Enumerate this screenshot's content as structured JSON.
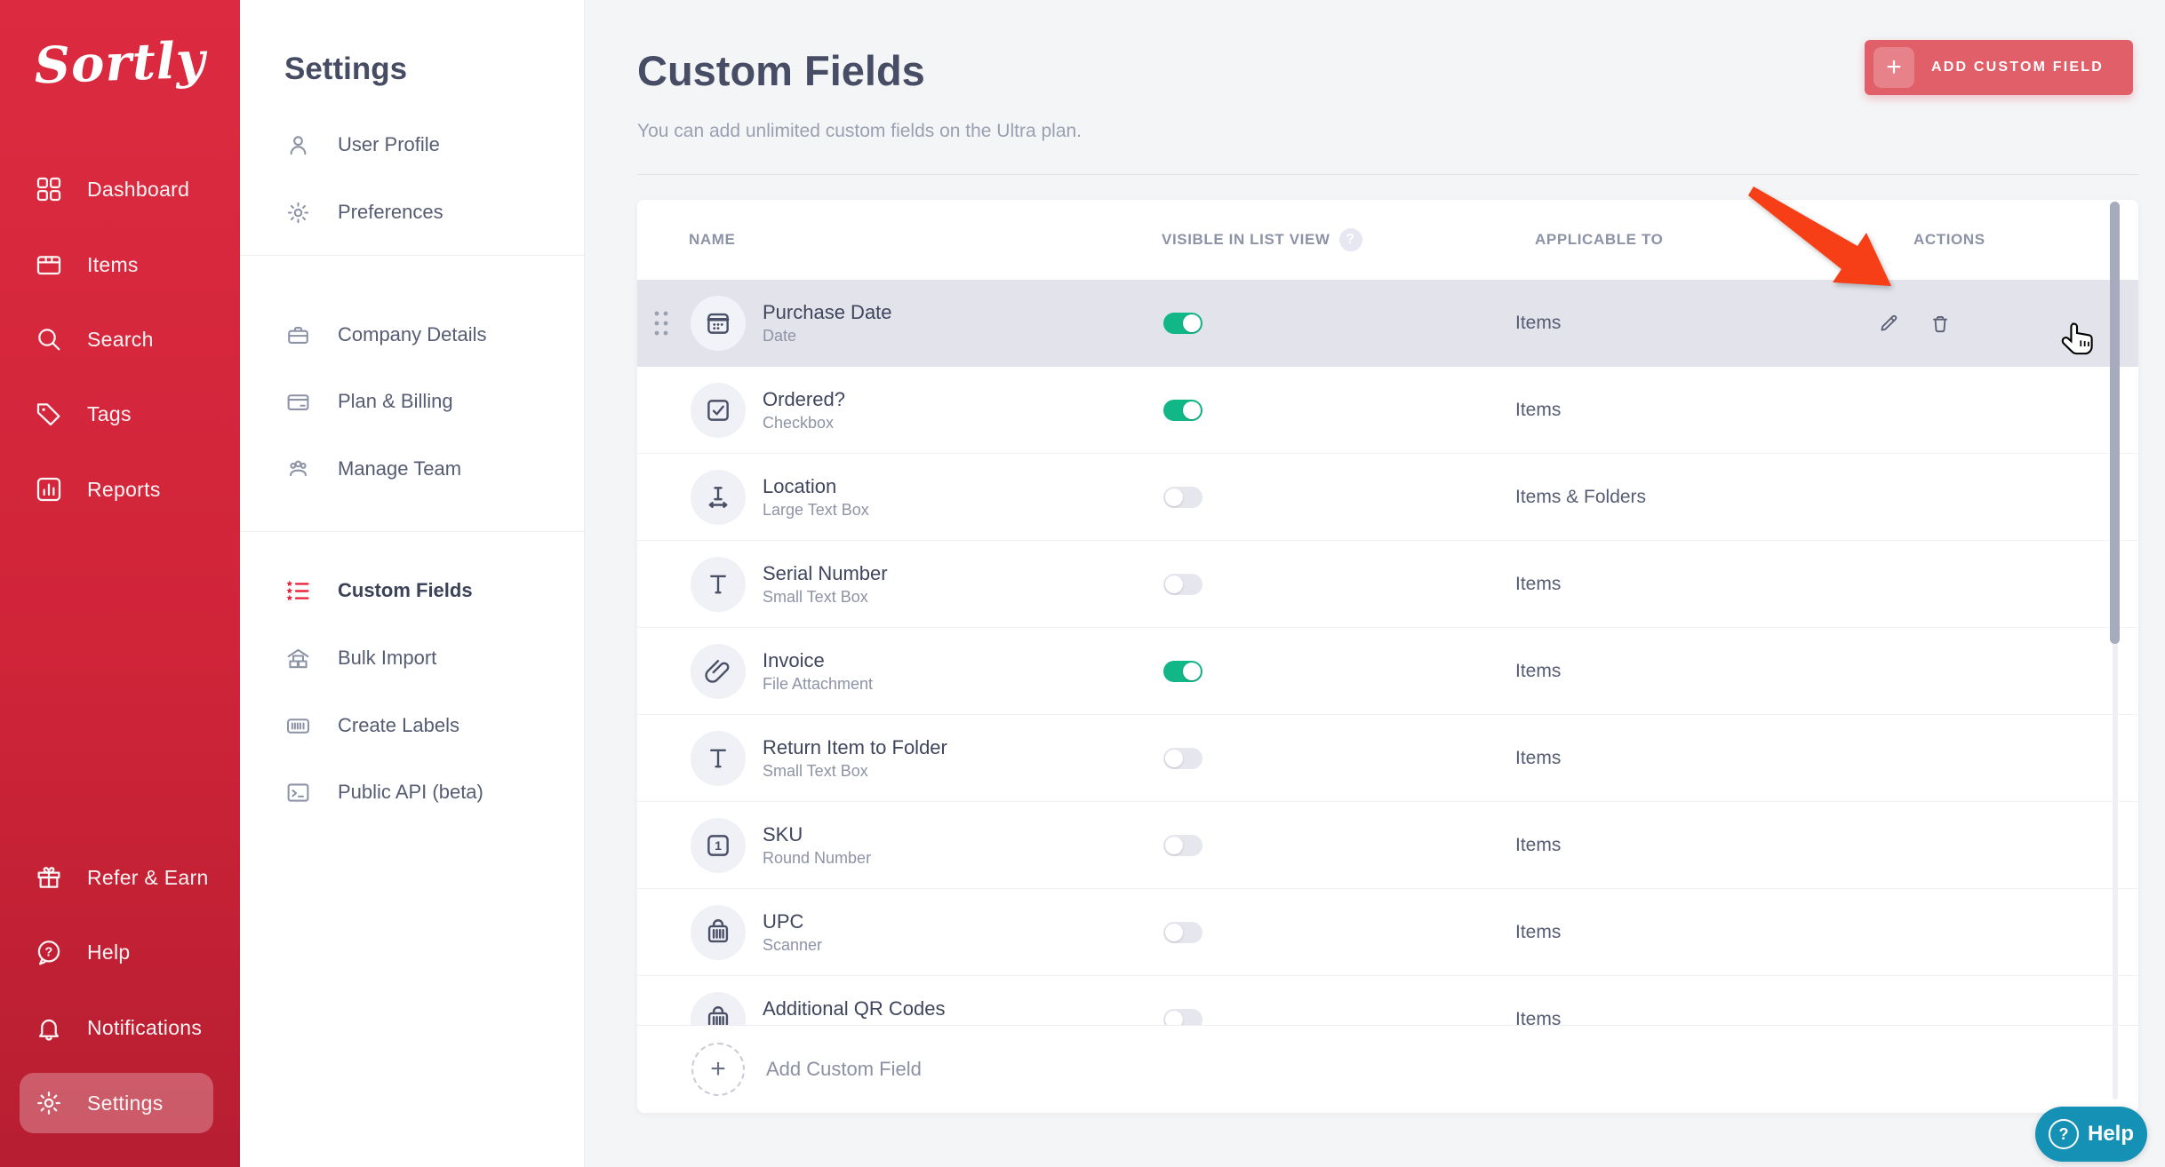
{
  "sidebar": {
    "logo": "Sortly",
    "items": [
      {
        "label": "Dashboard",
        "icon": "dashboard-grid-icon"
      },
      {
        "label": "Items",
        "icon": "items-box-icon"
      },
      {
        "label": "Search",
        "icon": "search-icon"
      },
      {
        "label": "Tags",
        "icon": "tag-icon"
      },
      {
        "label": "Reports",
        "icon": "reports-chart-icon"
      }
    ],
    "footer_items": [
      {
        "label": "Refer & Earn",
        "icon": "gift-icon"
      },
      {
        "label": "Help",
        "icon": "chat-question-icon"
      },
      {
        "label": "Notifications",
        "icon": "bell-icon"
      },
      {
        "label": "Settings",
        "icon": "gear-icon",
        "active": true
      }
    ]
  },
  "settings_nav": {
    "title": "Settings",
    "sections": [
      {
        "items": [
          {
            "label": "User Profile",
            "icon": "user-icon"
          },
          {
            "label": "Preferences",
            "icon": "gear-icon"
          }
        ]
      },
      {
        "items": [
          {
            "label": "Company Details",
            "icon": "briefcase-icon"
          },
          {
            "label": "Plan & Billing",
            "icon": "credit-card-icon"
          },
          {
            "label": "Manage Team",
            "icon": "team-icon"
          }
        ]
      },
      {
        "items": [
          {
            "label": "Custom Fields",
            "icon": "star-list-icon",
            "active": true
          },
          {
            "label": "Bulk Import",
            "icon": "warehouse-icon"
          },
          {
            "label": "Create Labels",
            "icon": "barcode-label-icon"
          },
          {
            "label": "Public API (beta)",
            "icon": "terminal-icon"
          }
        ]
      }
    ]
  },
  "main": {
    "title": "Custom Fields",
    "subtitle": "You can add unlimited custom fields on the Ultra plan.",
    "add_button_label": "ADD CUSTOM FIELD",
    "table": {
      "columns": [
        "NAME",
        "VISIBLE IN LIST VIEW",
        "APPLICABLE TO",
        "ACTIONS"
      ],
      "help_badge": "?",
      "rows": [
        {
          "name": "Purchase Date",
          "type": "Date",
          "icon": "calendar-icon",
          "visible": true,
          "applicable": "Items",
          "highlighted": true,
          "show_actions": true
        },
        {
          "name": "Ordered?",
          "type": "Checkbox",
          "icon": "checkbox-icon",
          "visible": true,
          "applicable": "Items"
        },
        {
          "name": "Location",
          "type": "Large Text Box",
          "icon": "text-width-icon",
          "visible": false,
          "applicable": "Items & Folders"
        },
        {
          "name": "Serial Number",
          "type": "Small Text Box",
          "icon": "text-icon",
          "visible": false,
          "applicable": "Items"
        },
        {
          "name": "Invoice",
          "type": "File Attachment",
          "icon": "paperclip-icon",
          "visible": true,
          "applicable": "Items"
        },
        {
          "name": "Return Item to Folder",
          "type": "Small Text Box",
          "icon": "text-icon",
          "visible": false,
          "applicable": "Items"
        },
        {
          "name": "SKU",
          "type": "Round Number",
          "icon": "number-box-icon",
          "visible": false,
          "applicable": "Items"
        },
        {
          "name": "UPC",
          "type": "Scanner",
          "icon": "barcode-icon",
          "visible": false,
          "applicable": "Items"
        },
        {
          "name": "Additional QR Codes",
          "type": "",
          "icon": "barcode-icon",
          "visible": false,
          "applicable": "Items",
          "partial": true
        }
      ],
      "footer_action_label": "Add Custom Field"
    }
  },
  "help_button": {
    "label": "Help",
    "icon": "question-circle-icon"
  },
  "annotations": {
    "arrow": {
      "description": "red annotation arrow pointing at row actions",
      "color": "#f63e17"
    },
    "cursor": {
      "description": "hand pointer cursor near first row actions"
    }
  },
  "colors": {
    "sidebar_red": "#d02439",
    "active_nav_red": "#e8273c",
    "toggle_on_green": "#12b787",
    "toggle_off_gray": "#e6e6ef",
    "add_button_red": "#e05f69",
    "help_teal": "#1591b5",
    "row_highlight": "#e3e3ec",
    "page_background": "#f4f5f7"
  }
}
